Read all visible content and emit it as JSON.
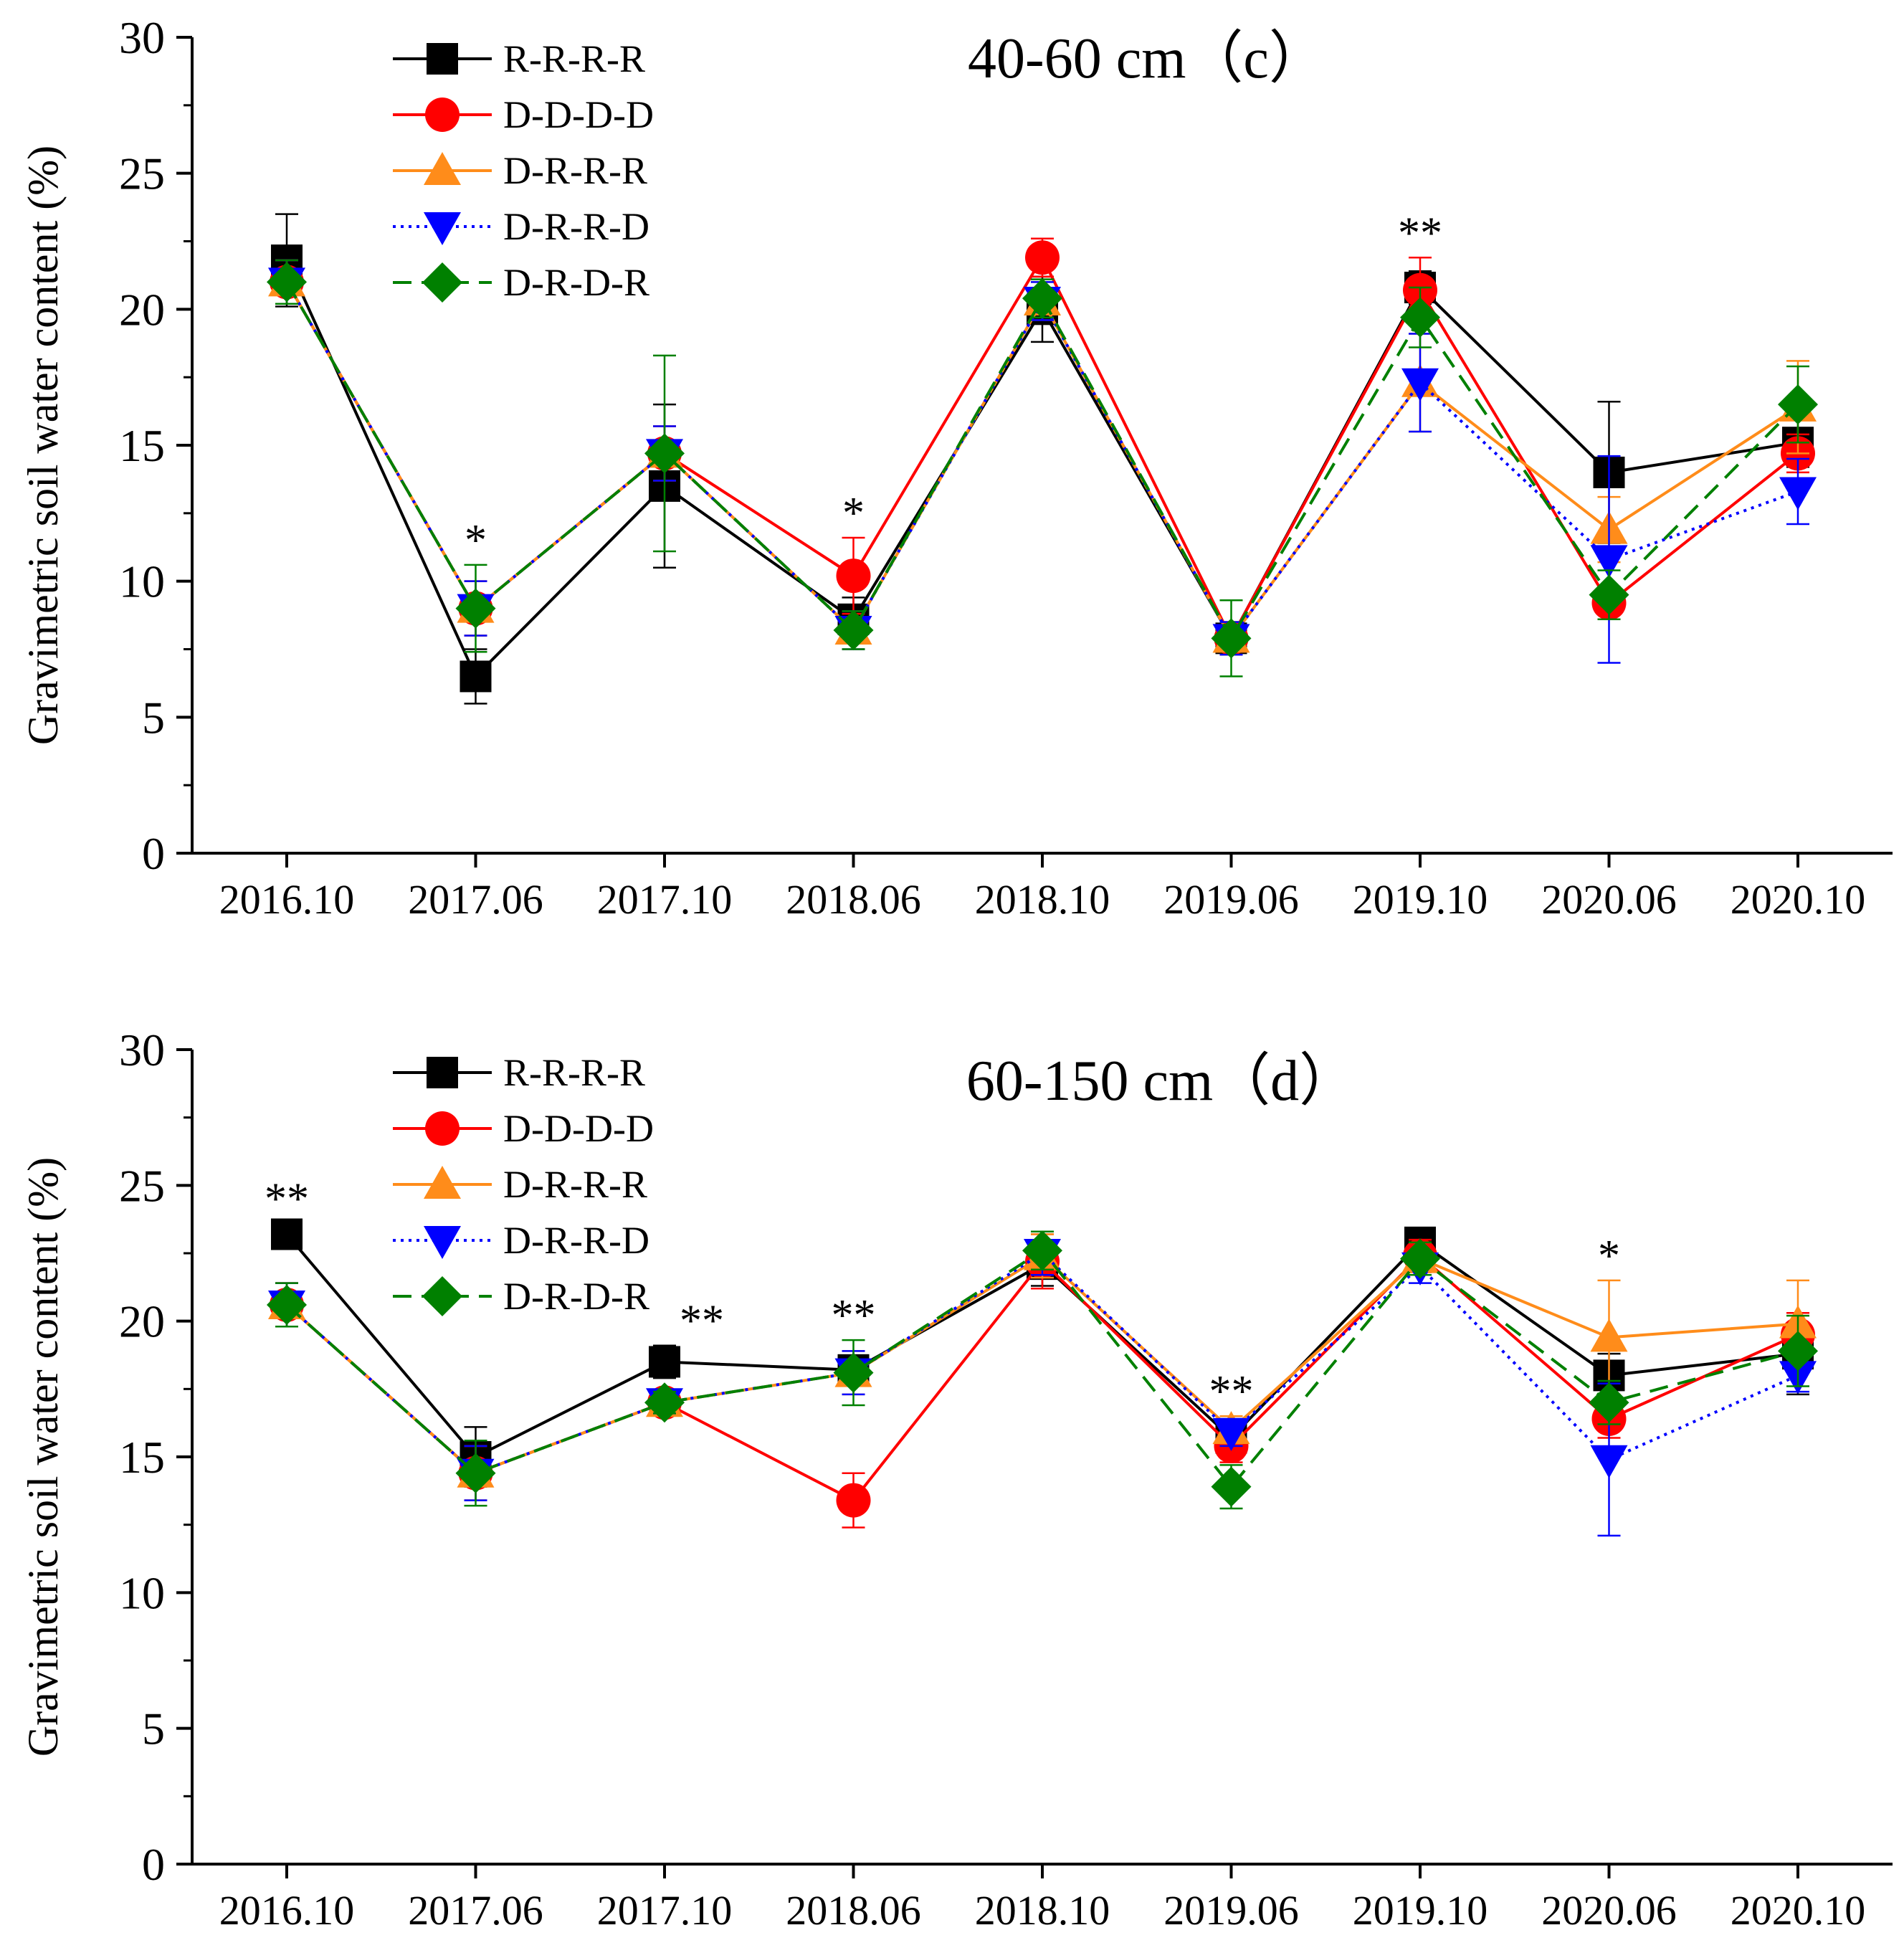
{
  "figure": {
    "ylabel": "Gravimetric soil water content (%)",
    "series_names": [
      "R-R-R-R",
      "D-D-D-D",
      "D-R-R-R",
      "D-R-R-D",
      "D-R-D-R"
    ],
    "series_colors": [
      "#000000",
      "#ff0000",
      "#ff8c1a",
      "#0000ff",
      "#008000"
    ],
    "series_markers": [
      "square",
      "circle",
      "triangle-up",
      "triangle-down",
      "diamond"
    ],
    "series_dash": [
      "solid",
      "solid",
      "solid",
      "dotted",
      "dashed"
    ]
  },
  "chart_data": [
    {
      "type": "line",
      "title": "40-60 cm（c）",
      "xlabel": "",
      "ylabel": "Gravimetric soil water content (%)",
      "categories": [
        "2016.10",
        "2017.06",
        "2017.10",
        "2018.06",
        "2018.10",
        "2019.06",
        "2019.10",
        "2020.06",
        "2020.10"
      ],
      "ylim": [
        0,
        30
      ],
      "yticks": [
        "0",
        "5",
        "10",
        "15",
        "20",
        "25",
        "30"
      ],
      "series": [
        {
          "name": "R-R-R-R",
          "values": [
            21.8,
            6.5,
            13.5,
            8.6,
            20.0,
            7.9,
            20.8,
            14.0,
            15.1
          ],
          "err": [
            1.7,
            1.0,
            3.0,
            0.8,
            1.2,
            0.6,
            0.6,
            2.6,
            0.9
          ]
        },
        {
          "name": "D-D-D-D",
          "values": [
            21.0,
            9.0,
            14.7,
            10.2,
            21.9,
            7.9,
            20.7,
            9.2,
            14.7
          ],
          "err": [
            0.8,
            1.0,
            1.0,
            1.4,
            0.7,
            0.6,
            1.2,
            0.6,
            0.7
          ]
        },
        {
          "name": "D-R-R-R",
          "values": [
            21.0,
            9.0,
            14.7,
            8.2,
            20.3,
            7.9,
            17.3,
            11.9,
            16.4
          ],
          "err": [
            0.8,
            1.0,
            1.0,
            0.7,
            0.7,
            0.6,
            1.8,
            1.2,
            1.7
          ]
        },
        {
          "name": "D-R-R-D",
          "values": [
            21.0,
            9.0,
            14.7,
            8.2,
            20.3,
            7.9,
            17.3,
            10.8,
            13.3
          ],
          "err": [
            0.8,
            1.0,
            1.0,
            0.7,
            0.7,
            0.6,
            1.8,
            3.8,
            1.2
          ]
        },
        {
          "name": "D-R-D-R",
          "values": [
            21.0,
            9.0,
            14.7,
            8.2,
            20.4,
            7.9,
            19.7,
            9.5,
            16.5
          ],
          "err": [
            0.8,
            1.6,
            3.6,
            0.7,
            0.7,
            1.4,
            1.1,
            0.9,
            1.4
          ]
        }
      ],
      "significance": [
        {
          "category": "2017.06",
          "label": "*"
        },
        {
          "category": "2018.06",
          "label": "*"
        },
        {
          "category": "2019.10",
          "label": "**"
        }
      ],
      "legend": "top-left",
      "grid": false
    },
    {
      "type": "line",
      "title": "60-150 cm（d）",
      "xlabel": "",
      "ylabel": "Gravimetric soil water content (%)",
      "categories": [
        "2016.10",
        "2017.06",
        "2017.10",
        "2018.06",
        "2018.10",
        "2019.06",
        "2019.10",
        "2020.06",
        "2020.10"
      ],
      "ylim": [
        0,
        30
      ],
      "yticks": [
        "0",
        "5",
        "10",
        "15",
        "20",
        "25",
        "30"
      ],
      "series": [
        {
          "name": "R-R-R-R",
          "values": [
            23.2,
            15.0,
            18.5,
            18.2,
            22.1,
            15.7,
            22.9,
            18.0,
            18.8
          ],
          "err": [
            0.4,
            1.1,
            0.6,
            0.4,
            0.8,
            0.6,
            0.4,
            0.8,
            1.5
          ]
        },
        {
          "name": "D-D-D-D",
          "values": [
            20.6,
            14.4,
            17.0,
            13.4,
            22.2,
            15.4,
            22.4,
            16.4,
            19.5
          ],
          "err": [
            0.8,
            1.0,
            0.4,
            1.0,
            1.0,
            0.6,
            0.6,
            0.7,
            0.8
          ]
        },
        {
          "name": "D-R-R-R",
          "values": [
            20.6,
            14.4,
            17.0,
            18.1,
            22.4,
            16.0,
            22.3,
            19.4,
            19.9
          ],
          "err": [
            0.8,
            1.0,
            0.4,
            0.8,
            0.8,
            0.5,
            0.6,
            2.1,
            1.6
          ]
        },
        {
          "name": "D-R-R-D",
          "values": [
            20.6,
            14.4,
            17.0,
            18.1,
            22.5,
            15.9,
            22.0,
            14.9,
            18.0
          ],
          "err": [
            0.8,
            1.0,
            0.4,
            0.8,
            0.8,
            0.5,
            0.6,
            2.8,
            0.6
          ]
        },
        {
          "name": "D-R-D-R",
          "values": [
            20.6,
            14.4,
            17.0,
            18.1,
            22.6,
            13.9,
            22.3,
            17.0,
            18.9
          ],
          "err": [
            0.8,
            1.2,
            0.4,
            1.2,
            0.7,
            0.8,
            0.6,
            0.8,
            1.3
          ]
        }
      ],
      "significance": [
        {
          "category": "2016.10",
          "label": "**"
        },
        {
          "category": "2017.10",
          "label": "**"
        },
        {
          "category": "2018.06",
          "label": "**"
        },
        {
          "category": "2019.06",
          "label": "**"
        },
        {
          "category": "2020.06",
          "label": "*"
        }
      ],
      "legend": "top-left",
      "grid": false
    }
  ]
}
